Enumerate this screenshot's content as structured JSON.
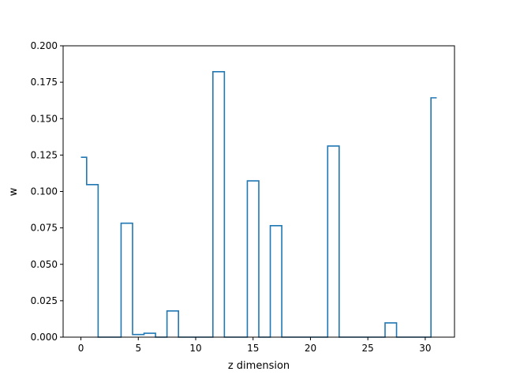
{
  "chart_data": {
    "type": "line",
    "drawstyle": "steps-mid",
    "xlabel": "z dimension",
    "ylabel": "w",
    "xlim": [
      -1.55,
      32.55
    ],
    "ylim": [
      0,
      0.2
    ],
    "x_ticks": [
      0,
      5,
      10,
      15,
      20,
      25,
      30
    ],
    "y_ticks": [
      0.0,
      0.025,
      0.05,
      0.075,
      0.1,
      0.125,
      0.15,
      0.175,
      0.2
    ],
    "y_tick_labels": [
      "0.000",
      "0.025",
      "0.050",
      "0.075",
      "0.100",
      "0.125",
      "0.150",
      "0.175",
      "0.200"
    ],
    "grid": false,
    "series": [
      {
        "color": "#1f77b4",
        "x": [
          0,
          1,
          2,
          3,
          4,
          5,
          6,
          7,
          8,
          9,
          10,
          11,
          12,
          13,
          14,
          15,
          16,
          17,
          18,
          19,
          20,
          21,
          22,
          23,
          24,
          25,
          26,
          27,
          28,
          29,
          30,
          31
        ],
        "values": [
          0.1235,
          0.1047,
          0,
          0,
          0.0782,
          0.0018,
          0.0027,
          0,
          0.018,
          0,
          0,
          0,
          0.1822,
          0,
          0,
          0.1073,
          0,
          0.0765,
          0,
          0,
          0,
          0,
          0.1312,
          0,
          0,
          0,
          0,
          0.0098,
          0,
          0,
          0,
          0.1643
        ]
      }
    ]
  }
}
